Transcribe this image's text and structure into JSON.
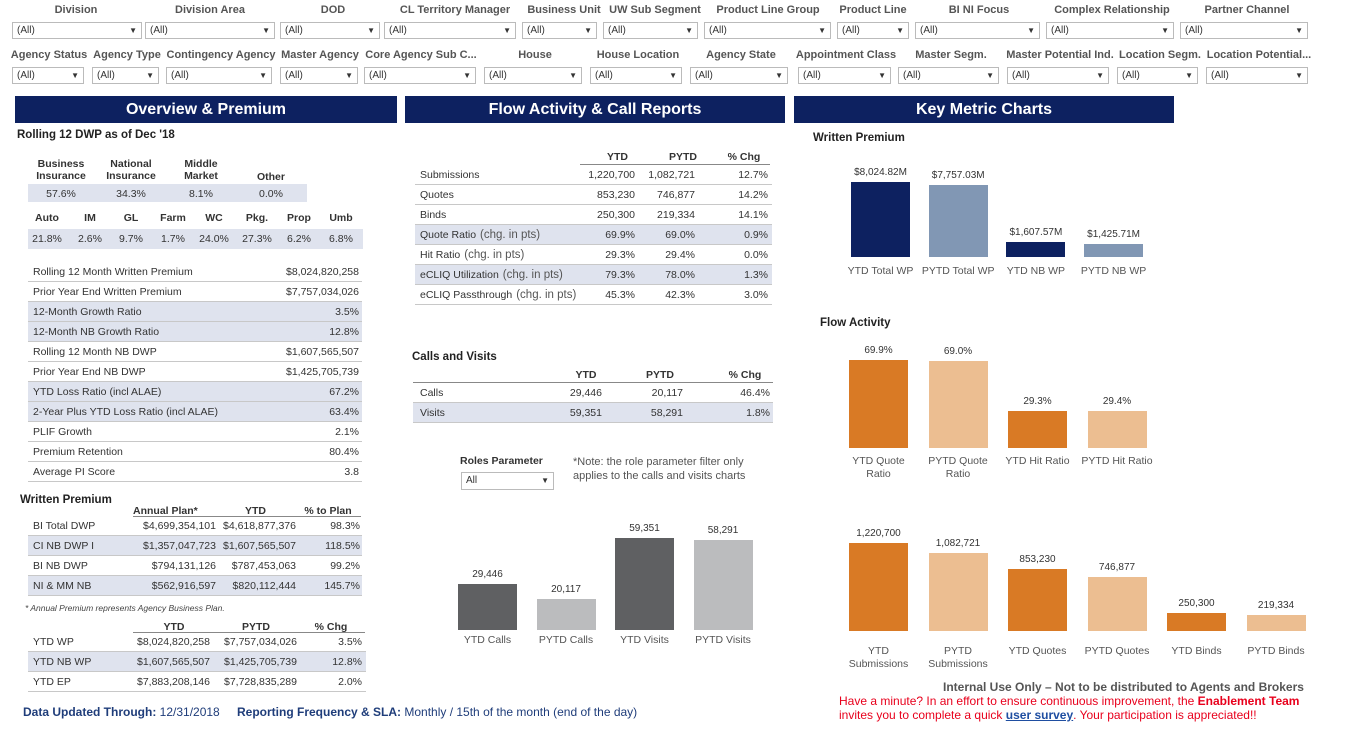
{
  "filters_row1": [
    {
      "label": "Division",
      "value": "(All)"
    },
    {
      "label": "Division Area",
      "value": "(All)"
    },
    {
      "label": "DOD",
      "value": "(All)"
    },
    {
      "label": "CL Territory Manager",
      "value": "(All)"
    },
    {
      "label": "Business Unit",
      "value": "(All)"
    },
    {
      "label": "UW Sub Segment",
      "value": "(All)"
    },
    {
      "label": "Product Line Group",
      "value": "(All)"
    },
    {
      "label": "Product Line",
      "value": "(All)"
    },
    {
      "label": "BI NI Focus",
      "value": "(All)"
    },
    {
      "label": "Complex Relationship",
      "value": "(All)"
    },
    {
      "label": "Partner Channel",
      "value": "(All)"
    }
  ],
  "filters_row2": [
    {
      "label": "Agency Status",
      "value": "(All)"
    },
    {
      "label": "Agency Type",
      "value": "(All)"
    },
    {
      "label": "Contingency Agency",
      "value": "(All)"
    },
    {
      "label": "Master Agency",
      "value": "(All)"
    },
    {
      "label": "Core Agency Sub C...",
      "value": "(All)"
    },
    {
      "label": "House",
      "value": "(All)"
    },
    {
      "label": "House Location",
      "value": "(All)"
    },
    {
      "label": "Agency State",
      "value": "(All)"
    },
    {
      "label": "Appointment Class",
      "value": "(All)"
    },
    {
      "label": "Master Segm.",
      "value": "(All)"
    },
    {
      "label": "Master Potential Ind.",
      "value": "(All)"
    },
    {
      "label": "Location Segm.",
      "value": "(All)"
    },
    {
      "label": "Location Potential...",
      "value": "(All)"
    }
  ],
  "banners": {
    "overview": "Overview & Premium",
    "flow": "Flow Activity & Call Reports",
    "metrics": "Key Metric Charts"
  },
  "overview": {
    "rolling_title": "Rolling 12 DWP as of Dec '18",
    "mix1": {
      "headers": [
        "Business\nInsurance",
        "National\nInsurance",
        "Middle\nMarket",
        "Other"
      ],
      "values": [
        "57.6%",
        "34.3%",
        "8.1%",
        "0.0%"
      ]
    },
    "mix2": {
      "headers": [
        "Auto",
        "IM",
        "GL",
        "Farm",
        "WC",
        "Pkg.",
        "Prop",
        "Umb"
      ],
      "values": [
        "21.8%",
        "2.6%",
        "9.7%",
        "1.7%",
        "24.0%",
        "27.3%",
        "6.2%",
        "6.8%"
      ]
    },
    "metrics": [
      {
        "label": "Rolling 12 Month Written Premium",
        "value": "$8,024,820,258"
      },
      {
        "label": "Prior Year End Written Premium",
        "value": "$7,757,034,026"
      },
      {
        "label": "12-Month Growth Ratio",
        "value": "3.5%"
      },
      {
        "label": "12-Month NB Growth Ratio",
        "value": "12.8%"
      },
      {
        "label": "Rolling 12 Month NB DWP",
        "value": "$1,607,565,507"
      },
      {
        "label": "Prior Year End NB DWP",
        "value": "$1,425,705,739"
      },
      {
        "label": "YTD Loss Ratio (incl ALAE)",
        "value": "67.2%"
      },
      {
        "label": "2-Year Plus YTD Loss Ratio (incl ALAE)",
        "value": "63.4%"
      },
      {
        "label": "PLIF Growth",
        "value": "2.1%"
      },
      {
        "label": "Premium Retention",
        "value": "80.4%"
      },
      {
        "label": "Average PI Score",
        "value": "3.8"
      }
    ],
    "wp_title": "Written Premium",
    "wp_headers": [
      "Annual Plan*",
      "YTD",
      "% to Plan"
    ],
    "wp_rows": [
      {
        "label": "BI Total DWP",
        "plan": "$4,699,354,101",
        "ytd": "$4,618,877,376",
        "pct": "98.3%"
      },
      {
        "label": "CI NB DWP I",
        "plan": "$1,357,047,723",
        "ytd": "$1,607,565,507",
        "pct": "118.5%"
      },
      {
        "label": "BI NB DWP",
        "plan": "$794,131,126",
        "ytd": "$787,453,063",
        "pct": "99.2%"
      },
      {
        "label": "NI & MM NB",
        "plan": "$562,916,597",
        "ytd": "$820,112,444",
        "pct": "145.7%"
      }
    ],
    "wp_note": "* Annual Premium represents Agency Business Plan.",
    "ytd_headers": [
      "YTD",
      "PYTD",
      "% Chg"
    ],
    "ytd_rows": [
      {
        "label": "YTD WP",
        "ytd": "$8,024,820,258",
        "pytd": "$7,757,034,026",
        "chg": "3.5%"
      },
      {
        "label": "YTD NB WP",
        "ytd": "$1,607,565,507",
        "pytd": "$1,425,705,739",
        "chg": "12.8%"
      },
      {
        "label": "YTD EP",
        "ytd": "$7,883,208,146",
        "pytd": "$7,728,835,289",
        "chg": "2.0%"
      }
    ]
  },
  "flow": {
    "headers": [
      "YTD",
      "PYTD",
      "% Chg"
    ],
    "rows": [
      {
        "label": "Submissions",
        "sub": "",
        "ytd": "1,220,700",
        "pytd": "1,082,721",
        "chg": "12.7%"
      },
      {
        "label": "Quotes",
        "sub": "",
        "ytd": "853,230",
        "pytd": "746,877",
        "chg": "14.2%"
      },
      {
        "label": "Binds",
        "sub": "",
        "ytd": "250,300",
        "pytd": "219,334",
        "chg": "14.1%"
      },
      {
        "label": "Quote Ratio",
        "sub": "(chg. in pts)",
        "ytd": "69.9%",
        "pytd": "69.0%",
        "chg": "0.9%"
      },
      {
        "label": "Hit Ratio",
        "sub": "(chg. in pts)",
        "ytd": "29.3%",
        "pytd": "29.4%",
        "chg": "0.0%"
      },
      {
        "label": "eCLIQ Utilization",
        "sub": "(chg. in pts)",
        "ytd": "79.3%",
        "pytd": "78.0%",
        "chg": "1.3%"
      },
      {
        "label": "eCLIQ Passthrough",
        "sub": "(chg. in pts)",
        "ytd": "45.3%",
        "pytd": "42.3%",
        "chg": "3.0%"
      }
    ],
    "calls_title": "Calls and Visits",
    "calls_headers": [
      "YTD",
      "PYTD",
      "% Chg"
    ],
    "calls_rows": [
      {
        "label": "Calls",
        "ytd": "29,446",
        "pytd": "20,117",
        "chg": "46.4%"
      },
      {
        "label": "Visits",
        "ytd": "59,351",
        "pytd": "58,291",
        "chg": "1.8%"
      }
    ],
    "roles_label": "Roles Parameter",
    "roles_value": "All",
    "roles_note": "*Note: the role parameter filter only applies to the calls and visits charts"
  },
  "chart_data": [
    {
      "type": "bar",
      "title": "",
      "categories": [
        "YTD Calls",
        "PYTD Calls",
        "YTD Visits",
        "PYTD Visits"
      ],
      "values": [
        29446,
        20117,
        59351,
        58291
      ],
      "labels": [
        "29,446",
        "20,117",
        "59,351",
        "58,291"
      ],
      "colors": [
        "#5f6062",
        "#bbbcbe",
        "#5f6062",
        "#bbbcbe"
      ]
    },
    {
      "type": "bar",
      "title": "Written Premium",
      "categories": [
        "YTD Total WP",
        "PYTD Total WP",
        "YTD NB WP",
        "PYTD NB WP"
      ],
      "values": [
        8024.82,
        7757.03,
        1607.57,
        1425.71
      ],
      "labels": [
        "$8,024.82M",
        "$7,757.03M",
        "$1,607.57M",
        "$1,425.71M"
      ],
      "colors": [
        "#0d2160",
        "#8197b4",
        "#0d2160",
        "#8197b4"
      ]
    },
    {
      "type": "bar",
      "title": "Flow Activity",
      "categories": [
        "YTD Quote Ratio",
        "PYTD Quote Ratio",
        "YTD Hit Ratio",
        "PYTD Hit Ratio"
      ],
      "values": [
        69.9,
        69.0,
        29.3,
        29.4
      ],
      "labels": [
        "69.9%",
        "69.0%",
        "29.3%",
        "29.4%"
      ],
      "colors": [
        "#d97a25",
        "#ecbe91",
        "#d97a25",
        "#ecbe91"
      ]
    },
    {
      "type": "bar",
      "title": "",
      "categories": [
        "YTD Submissions",
        "PYTD Submissions",
        "YTD Quotes",
        "PYTD Quotes",
        "YTD Binds",
        "PYTD Binds"
      ],
      "values": [
        1220700,
        1082721,
        853230,
        746877,
        250300,
        219334
      ],
      "labels": [
        "1,220,700",
        "1,082,721",
        "853,230",
        "746,877",
        "250,300",
        "219,334"
      ],
      "colors": [
        "#d97a25",
        "#ecbe91",
        "#d97a25",
        "#ecbe91",
        "#d97a25",
        "#ecbe91"
      ]
    }
  ],
  "footer": {
    "updated_label": "Data Updated Through:",
    "updated_value": "12/31/2018",
    "freq_label": "Reporting Frequency & SLA:",
    "freq_value": "Monthly / 15th of the month (end of the day)",
    "internal": "Internal Use Only – Not to be distributed to Agents and Brokers",
    "survey_1": "Have a minute? In an effort to ensure continuous improvement, the ",
    "survey_team": "Enablement Team",
    "survey_2": "invites you to complete a quick ",
    "survey_link": "user survey",
    "survey_3": ". Your participation is appreciated!!"
  },
  "colors": {
    "navy": "#0d2160",
    "orange": "#d97a25",
    "peach": "#ecbe91",
    "steel": "#8197b4",
    "gray_dark": "#5f6062",
    "gray_light": "#bbbcbe",
    "shade": "#dfe3ee"
  }
}
